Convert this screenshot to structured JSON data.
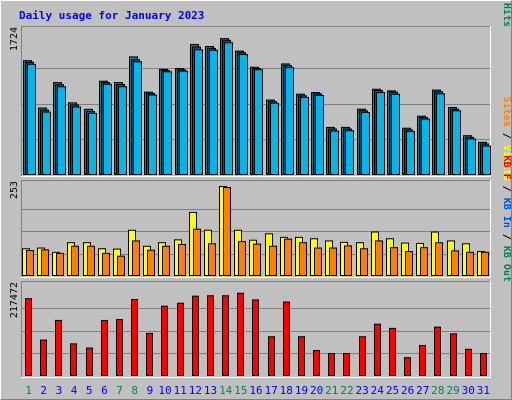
{
  "chart_data": {
    "type": "bar",
    "title": "Daily usage for January 2023",
    "categories": [
      "1",
      "2",
      "3",
      "4",
      "5",
      "6",
      "7",
      "8",
      "9",
      "10",
      "11",
      "12",
      "13",
      "14",
      "15",
      "16",
      "17",
      "18",
      "19",
      "20",
      "21",
      "22",
      "23",
      "24",
      "25",
      "26",
      "27",
      "28",
      "29",
      "30",
      "31"
    ],
    "weekend_days": [
      "1",
      "7",
      "8",
      "14",
      "15",
      "21",
      "22",
      "28",
      "29"
    ],
    "panels": [
      {
        "name": "hits-files-pages",
        "ymax": 1724,
        "ymax_label": "1724",
        "axis_label": [
          {
            "text": "Pages",
            "color": "#00c8f0"
          },
          {
            "text": " / ",
            "color": "#000000"
          },
          {
            "text": "Files",
            "color": "#0070c0"
          },
          {
            "text": " / ",
            "color": "#000000"
          },
          {
            "text": "Hits",
            "color": "#00805c"
          }
        ],
        "series": [
          {
            "name": "Hits",
            "color": "#1e8060",
            "values": [
              1384,
              814,
              1120,
              876,
              798,
              1137,
              1120,
              1430,
              1005,
              1280,
              1290,
              1580,
              1555,
              1650,
              1500,
              1305,
              910,
              1345,
              980,
              1000,
              580,
              580,
              800,
              1040,
              1020,
              570,
              715,
              1030,
              820,
              480,
              400
            ]
          },
          {
            "name": "Files",
            "color": "#0a4a9c",
            "values": [
              1365,
              789,
              1095,
              851,
              772,
              1120,
              1097,
              1395,
              990,
              1265,
              1274,
              1550,
              1533,
              1630,
              1480,
              1290,
              890,
              1325,
              960,
              985,
              560,
              560,
              780,
              1025,
              1005,
              550,
              700,
              1010,
              800,
              460,
              380
            ]
          },
          {
            "name": "Pages",
            "color": "#00b8e8",
            "values": [
              1340,
              764,
              1070,
              825,
              748,
              1100,
              1070,
              1370,
              970,
              1250,
              1258,
              1515,
              1510,
              1600,
              1458,
              1275,
              870,
              1300,
              940,
              965,
              535,
              540,
              760,
              1000,
              980,
              530,
              680,
              985,
              780,
              440,
              355
            ]
          }
        ]
      },
      {
        "name": "visits-sites",
        "ymax": 253,
        "ymax_label": "253",
        "axis_label": [
          {
            "text": "Sites",
            "color": "#ff8000"
          },
          {
            "text": " / ",
            "color": "#000000"
          },
          {
            "text": "Visits",
            "color": "#ffff00"
          }
        ],
        "series": [
          {
            "name": "Visits",
            "color": "#ffff00",
            "values": [
              78,
              80,
              68,
              95,
              95,
              78,
              77,
              130,
              85,
              95,
              103,
              180,
              130,
              253,
              130,
              102,
              120,
              110,
              110,
              106,
              100,
              96,
              95,
              125,
              106,
              94,
              93,
              125,
              100,
              92,
              70
            ]
          },
          {
            "name": "Sites",
            "color": "#ff8000",
            "values": [
              73,
              75,
              65,
              85,
              85,
              65,
              57,
              100,
              74,
              85,
              90,
              133,
              92,
              250,
              98,
              91,
              85,
              105,
              95,
              80,
              80,
              86,
              78,
              100,
              81,
              70,
              81,
              95,
              72,
              68,
              68
            ]
          }
        ]
      },
      {
        "name": "kb",
        "ymax": 217472,
        "ymax_label": "217472",
        "axis_label": [
          {
            "text": "KB F",
            "color": "#e00000"
          },
          {
            "text": " / ",
            "color": "#000000"
          },
          {
            "text": "KB In",
            "color": "#0050e0"
          },
          {
            "text": " / ",
            "color": "#000000"
          },
          {
            "text": "KB Out",
            "color": "#00805c"
          }
        ],
        "series": [
          {
            "name": "KB F",
            "color": "#ff0000",
            "values": [
              186000,
              87000,
              134000,
              78000,
              68000,
              134000,
              136000,
              184000,
              103000,
              168000,
              175000,
              192000,
              193000,
              193000,
              199000,
              183000,
              95000,
              178000,
              95000,
              62000,
              55000,
              55000,
              95000,
              125000,
              115000,
              45000,
              74000,
              118000,
              102000,
              65000,
              55000
            ]
          }
        ]
      }
    ],
    "colors": {
      "frame_light": "#ffffff",
      "frame_dark": "#808080",
      "plot_bg": "#c0c0c0",
      "outer_bg": "#c0c0c0",
      "grid": "#808080",
      "title": "#0000ff",
      "day_normal": "#0000ff",
      "day_weekend": "#00805c"
    }
  }
}
